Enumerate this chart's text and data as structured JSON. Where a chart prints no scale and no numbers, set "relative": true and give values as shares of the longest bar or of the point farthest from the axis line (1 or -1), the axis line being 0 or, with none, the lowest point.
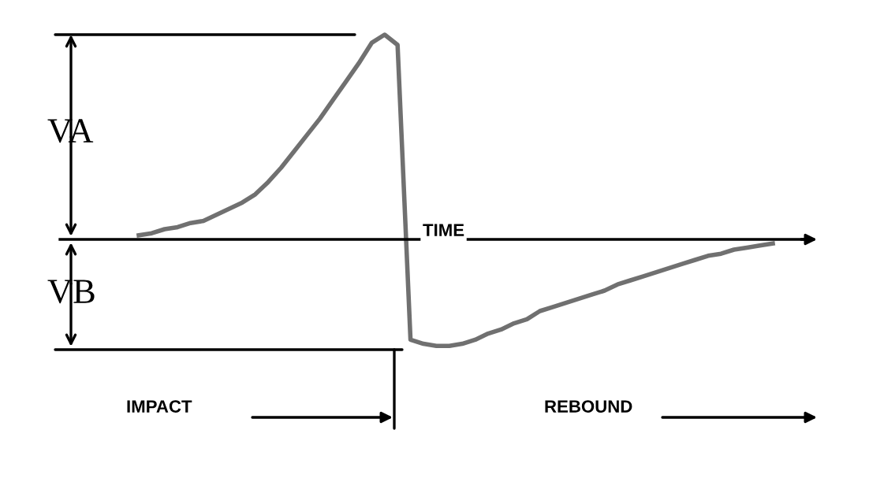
{
  "chart_data": {
    "type": "line",
    "relative": true,
    "color": "#707070",
    "categories": [
      null,
      null,
      null,
      null,
      null,
      null,
      null,
      null,
      null,
      null,
      null,
      null,
      null,
      null,
      null,
      null,
      null,
      null,
      null,
      null,
      null,
      null,
      null,
      null,
      null,
      null,
      null,
      null,
      null,
      null,
      null,
      null,
      null,
      null,
      null,
      null,
      null,
      null,
      null,
      null,
      null,
      null,
      null,
      null,
      null,
      null,
      null,
      null,
      null,
      null
    ],
    "values": [
      0.02,
      0.03,
      0.05,
      0.06,
      0.08,
      0.09,
      0.12,
      0.15,
      0.18,
      0.22,
      0.28,
      0.35,
      0.43,
      0.51,
      0.59,
      0.68,
      0.77,
      0.86,
      0.96,
      1.0,
      0.95,
      -0.49,
      -0.51,
      -0.52,
      -0.52,
      -0.51,
      -0.49,
      -0.46,
      -0.44,
      -0.41,
      -0.39,
      -0.35,
      -0.33,
      -0.31,
      -0.29,
      -0.27,
      -0.25,
      -0.22,
      -0.2,
      -0.18,
      -0.16,
      -0.14,
      -0.12,
      -0.1,
      -0.08,
      -0.07,
      -0.05,
      -0.04,
      -0.03,
      -0.02
    ],
    "annotations": [
      "VA",
      "VB",
      "TIME",
      "IMPACT",
      "REBOUND"
    ]
  }
}
